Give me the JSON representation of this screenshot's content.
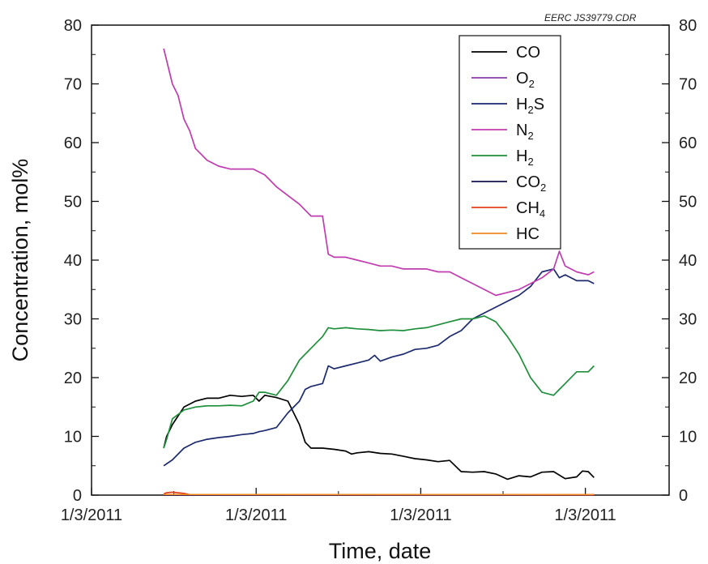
{
  "watermark": "EERC JS39779.CDR",
  "chart_data": {
    "type": "line",
    "xlabel": "Time, date",
    "ylabel": "Concentration, mol%",
    "ylim": [
      0,
      80
    ],
    "yticks": [
      0,
      10,
      20,
      30,
      40,
      50,
      60,
      70,
      80
    ],
    "xlim": [
      0,
      100
    ],
    "xticks": [
      0,
      28.5,
      57,
      85.5
    ],
    "xtick_labels": [
      "1/3/2011",
      "1/3/2011",
      "1/3/2011",
      "1/3/2011"
    ],
    "right_axis": true,
    "grid": false,
    "legend_position": "top-right",
    "series": [
      {
        "name": "CO",
        "label_parts": [
          "CO",
          "",
          ""
        ],
        "color": "#000000",
        "x": [
          12.5,
          13,
          14,
          16,
          18,
          20,
          22,
          24,
          26,
          28,
          29,
          30,
          32,
          34,
          35,
          36,
          37,
          38,
          40,
          42,
          44,
          45,
          46,
          48,
          50,
          52,
          54,
          56,
          58,
          60,
          62,
          64,
          66,
          68,
          70,
          72,
          74,
          76,
          78,
          80,
          82,
          84,
          85,
          86,
          87
        ],
        "y": [
          8,
          10,
          12,
          15,
          16,
          16.5,
          16.5,
          17,
          16.8,
          17,
          16,
          17,
          16.6,
          16,
          14,
          12,
          9,
          8,
          8,
          7.8,
          7.5,
          7,
          7.2,
          7.4,
          7.1,
          7,
          6.6,
          6.2,
          6,
          5.7,
          5.9,
          4,
          3.9,
          4,
          3.6,
          2.7,
          3.3,
          3.1,
          3.9,
          4,
          2.8,
          3.1,
          4.1,
          4,
          3
        ]
      },
      {
        "name": "O2",
        "label_parts": [
          "O",
          "2",
          ""
        ],
        "color": "#8a3ca8",
        "x": [
          12.5,
          87
        ],
        "y": [
          0,
          0
        ]
      },
      {
        "name": "H2S",
        "label_parts": [
          "H",
          "2",
          "S"
        ],
        "color": "#1c2a6e",
        "x": [
          12.5,
          14,
          16,
          18,
          20,
          22,
          24,
          26,
          28,
          29,
          30,
          32,
          34,
          36,
          37,
          38,
          40,
          41,
          42,
          44,
          46,
          48,
          49,
          50,
          52,
          54,
          56,
          58,
          60,
          62,
          64,
          66,
          68,
          70,
          72,
          74,
          76,
          78,
          80,
          81,
          82,
          84,
          85,
          86,
          87
        ],
        "y": [
          5,
          6,
          8,
          9,
          9.5,
          9.8,
          10,
          10.3,
          10.5,
          10.8,
          11,
          11.5,
          14,
          16,
          18,
          18.5,
          19,
          22,
          21.5,
          22,
          22.5,
          23,
          23.8,
          22.8,
          23.5,
          24,
          24.8,
          25,
          25.5,
          27,
          28,
          30,
          31,
          32,
          33,
          34,
          35.5,
          38,
          38.5,
          37,
          37.5,
          36.5,
          36.5,
          36.5,
          36
        ]
      },
      {
        "name": "N2",
        "label_parts": [
          "N",
          "2",
          ""
        ],
        "color": "#c03cb0",
        "x": [
          12.5,
          13,
          14,
          15,
          16,
          17,
          18,
          19,
          20,
          22,
          24,
          26,
          28,
          29,
          30,
          32,
          34,
          36,
          38,
          40,
          41,
          42,
          44,
          46,
          48,
          50,
          52,
          54,
          56,
          58,
          60,
          62,
          64,
          66,
          68,
          70,
          72,
          74,
          76,
          78,
          80,
          81,
          82,
          84,
          86,
          87
        ],
        "y": [
          76,
          74,
          70,
          68,
          64,
          62,
          59,
          58,
          57,
          56,
          55.5,
          55.5,
          55.5,
          55,
          54.5,
          52.5,
          51,
          49.5,
          47.5,
          47.5,
          41,
          40.5,
          40.5,
          40,
          39.5,
          39,
          39,
          38.5,
          38.5,
          38.5,
          38,
          38,
          37,
          36,
          35,
          34,
          34.5,
          35,
          36,
          37,
          38.5,
          41.5,
          39,
          38,
          37.5,
          38
        ]
      },
      {
        "name": "H2",
        "label_parts": [
          "H",
          "2",
          ""
        ],
        "color": "#1e8f3a",
        "x": [
          12.5,
          13,
          14,
          16,
          18,
          20,
          22,
          24,
          26,
          28,
          29,
          30,
          32,
          34,
          36,
          38,
          40,
          41,
          42,
          44,
          46,
          48,
          50,
          52,
          54,
          56,
          58,
          60,
          62,
          64,
          66,
          68,
          70,
          72,
          74,
          76,
          78,
          80,
          81,
          82,
          84,
          86,
          87
        ],
        "y": [
          8,
          9.5,
          13,
          14.5,
          15,
          15.2,
          15.2,
          15.3,
          15.2,
          16,
          17.5,
          17.5,
          17,
          19.5,
          23,
          25,
          27,
          28.5,
          28.3,
          28.5,
          28.3,
          28.2,
          28,
          28.1,
          28,
          28.3,
          28.5,
          29,
          29.5,
          30,
          30,
          30.5,
          29.5,
          27,
          24,
          20,
          17.5,
          17,
          18,
          19,
          21,
          21,
          22
        ]
      },
      {
        "name": "CO2",
        "label_parts": [
          "CO",
          "2",
          ""
        ],
        "color": "#13134f",
        "x": [
          12.5,
          87
        ],
        "y": [
          0,
          0
        ]
      },
      {
        "name": "CH4",
        "label_parts": [
          "CH",
          "4",
          ""
        ],
        "color": "#e2401c",
        "x": [
          12.5,
          13,
          14,
          15,
          16,
          17,
          87
        ],
        "y": [
          0.2,
          0.4,
          0.5,
          0.4,
          0.3,
          0.1,
          0.05
        ]
      },
      {
        "name": "HC",
        "label_parts": [
          "HC",
          "",
          ""
        ],
        "color": "#f08a1e",
        "x": [
          12.5,
          87
        ],
        "y": [
          0.1,
          0.1
        ]
      }
    ]
  }
}
